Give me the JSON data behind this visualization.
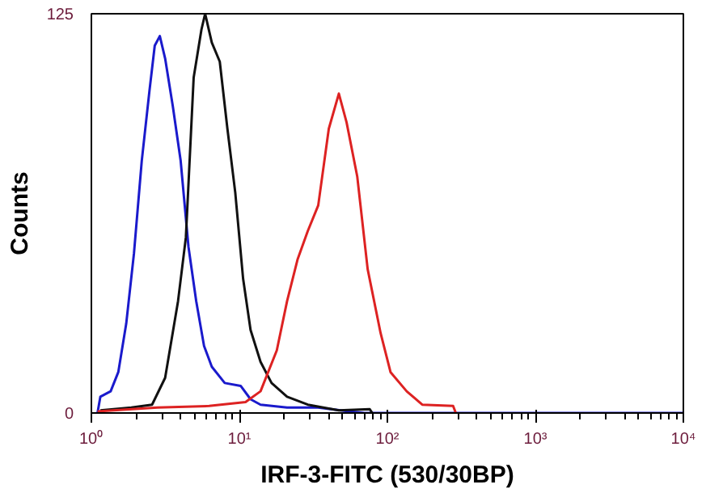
{
  "chart_data": {
    "type": "line",
    "xlabel": "IRF-3-FITC (530/30BP)",
    "ylabel": "Counts",
    "log": "x",
    "xlim": [
      1,
      10000
    ],
    "ylim": [
      0,
      125
    ],
    "xticks": [
      {
        "value": 1,
        "label": "10⁰"
      },
      {
        "value": 10,
        "label": "10¹"
      },
      {
        "value": 100,
        "label": "10²"
      },
      {
        "value": 1000,
        "label": "10³"
      },
      {
        "value": 10000,
        "label": "10⁴"
      }
    ],
    "yticks": [
      0,
      125
    ],
    "grid": false,
    "marker": "none",
    "line_style": "solid",
    "series": [
      {
        "color": "#1a1acc",
        "x": [
          1.1,
          1.15,
          1.35,
          1.52,
          1.72,
          1.94,
          2.19,
          2.47,
          2.68,
          2.9,
          3.15,
          3.55,
          4.01,
          4.53,
          5.11,
          5.77,
          6.51,
          7.96,
          10.2,
          11.9,
          13.9,
          21,
          34,
          55,
          70,
          10000
        ],
        "values": [
          0,
          5.1,
          6.8,
          12.8,
          28,
          50,
          79,
          101,
          115,
          118,
          111,
          96,
          79,
          52,
          35,
          21,
          14.5,
          9.4,
          8.5,
          4.3,
          2.6,
          1.7,
          1.7,
          0.5,
          0,
          0
        ]
      },
      {
        "color": "#111111",
        "x": [
          1.15,
          1.86,
          2.57,
          3.15,
          3.85,
          4.35,
          4.91,
          5.54,
          5.87,
          6.51,
          7.37,
          8.3,
          9.38,
          10.6,
          11.9,
          13.9,
          16.5,
          21,
          29,
          47,
          76,
          79
        ],
        "values": [
          0.8,
          1.7,
          2.6,
          11,
          35,
          55,
          105,
          120,
          125,
          116,
          110,
          89,
          69,
          42,
          26,
          16,
          9.4,
          5.1,
          2.6,
          0.8,
          1.2,
          0
        ]
      },
      {
        "color": "#dd2222",
        "x": [
          1.1,
          2.79,
          6.25,
          11,
          13.9,
          17.9,
          21,
          24.7,
          29,
          34.1,
          40.2,
          47,
          53,
          62.6,
          73.6,
          90,
          105,
          135,
          172,
          278,
          290
        ],
        "values": [
          0.5,
          1.7,
          2.2,
          3.4,
          6.8,
          19.6,
          35,
          48,
          57,
          65,
          89,
          100,
          91,
          74,
          45,
          25,
          12.8,
          6.8,
          2.6,
          2.2,
          0
        ]
      }
    ]
  }
}
